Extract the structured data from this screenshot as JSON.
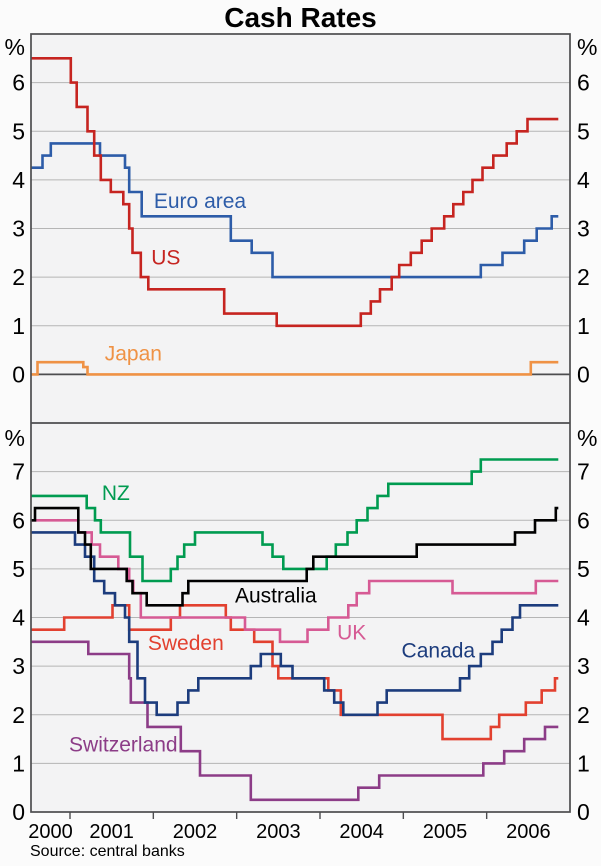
{
  "title": "Cash Rates",
  "source": "Source: central banks",
  "x_axis": {
    "range": [
      2000.532,
      2007.0
    ],
    "data_end": 2006.86,
    "tick_years": [
      2001,
      2002,
      2003,
      2004,
      2005,
      2006
    ],
    "year_labels": [
      {
        "text": "2000",
        "mid": 2000.766
      },
      {
        "text": "2001",
        "mid": 2001.5
      },
      {
        "text": "2002",
        "mid": 2002.5
      },
      {
        "text": "2003",
        "mid": 2003.5
      },
      {
        "text": "2004",
        "mid": 2004.5
      },
      {
        "text": "2005",
        "mid": 2005.5
      },
      {
        "text": "2006",
        "mid": 2006.5
      }
    ]
  },
  "chart_data": [
    {
      "type": "line",
      "panel": "top",
      "unit": "%",
      "ylim": [
        -1,
        7
      ],
      "yticks": [
        0,
        1,
        2,
        3,
        4,
        5,
        6
      ],
      "zero_line": 0,
      "grid": true,
      "series": [
        {
          "name": "Japan",
          "color": "#ef9245",
          "label": {
            "t": 2001.76,
            "v": 0.44
          },
          "points": [
            [
              2000.53,
              0.0
            ],
            [
              2000.61,
              0.25
            ],
            [
              2001.16,
              0.15
            ],
            [
              2001.21,
              0.0
            ],
            [
              2006.53,
              0.25
            ]
          ]
        },
        {
          "name": "Euro area",
          "color": "#2d5ca8",
          "label": {
            "t": 2002.56,
            "v": 3.57
          },
          "points": [
            [
              2000.53,
              4.25
            ],
            [
              2000.67,
              4.5
            ],
            [
              2000.77,
              4.75
            ],
            [
              2001.36,
              4.5
            ],
            [
              2001.66,
              4.25
            ],
            [
              2001.71,
              3.75
            ],
            [
              2001.86,
              3.25
            ],
            [
              2002.93,
              2.75
            ],
            [
              2003.18,
              2.5
            ],
            [
              2003.43,
              2.0
            ],
            [
              2005.93,
              2.25
            ],
            [
              2006.19,
              2.5
            ],
            [
              2006.45,
              2.75
            ],
            [
              2006.6,
              3.0
            ],
            [
              2006.78,
              3.25
            ]
          ]
        },
        {
          "name": "US",
          "color": "#c62420",
          "label": {
            "t": 2002.15,
            "v": 2.41
          },
          "points": [
            [
              2000.53,
              6.5
            ],
            [
              2001.01,
              6.0
            ],
            [
              2001.08,
              5.5
            ],
            [
              2001.21,
              5.0
            ],
            [
              2001.29,
              4.5
            ],
            [
              2001.37,
              4.0
            ],
            [
              2001.49,
              3.75
            ],
            [
              2001.64,
              3.5
            ],
            [
              2001.71,
              3.0
            ],
            [
              2001.75,
              2.5
            ],
            [
              2001.85,
              2.0
            ],
            [
              2001.94,
              1.75
            ],
            [
              2002.85,
              1.25
            ],
            [
              2003.48,
              1.0
            ],
            [
              2004.49,
              1.25
            ],
            [
              2004.61,
              1.5
            ],
            [
              2004.72,
              1.75
            ],
            [
              2004.86,
              2.0
            ],
            [
              2004.95,
              2.25
            ],
            [
              2005.09,
              2.5
            ],
            [
              2005.22,
              2.75
            ],
            [
              2005.34,
              3.0
            ],
            [
              2005.49,
              3.25
            ],
            [
              2005.6,
              3.5
            ],
            [
              2005.72,
              3.75
            ],
            [
              2005.83,
              4.0
            ],
            [
              2005.95,
              4.25
            ],
            [
              2006.08,
              4.5
            ],
            [
              2006.24,
              4.75
            ],
            [
              2006.36,
              5.0
            ],
            [
              2006.49,
              5.25
            ]
          ]
        }
      ]
    },
    {
      "type": "line",
      "panel": "bottom",
      "unit": "%",
      "ylim": [
        0,
        8
      ],
      "yticks": [
        0,
        1,
        2,
        3,
        4,
        5,
        6,
        7
      ],
      "grid": true,
      "series": [
        {
          "name": "Sweden",
          "color": "#e2402f",
          "label": {
            "t": 2002.39,
            "v": 3.48
          },
          "points": [
            [
              2000.53,
              3.75
            ],
            [
              2000.93,
              4.0
            ],
            [
              2001.51,
              4.25
            ],
            [
              2001.71,
              3.75
            ],
            [
              2002.21,
              4.0
            ],
            [
              2002.32,
              4.25
            ],
            [
              2002.87,
              4.0
            ],
            [
              2002.93,
              3.75
            ],
            [
              2003.21,
              3.5
            ],
            [
              2003.43,
              3.0
            ],
            [
              2003.5,
              2.75
            ],
            [
              2004.1,
              2.5
            ],
            [
              2004.25,
              2.0
            ],
            [
              2005.47,
              1.5
            ],
            [
              2006.05,
              1.75
            ],
            [
              2006.15,
              2.0
            ],
            [
              2006.47,
              2.25
            ],
            [
              2006.66,
              2.5
            ],
            [
              2006.82,
              2.75
            ]
          ]
        },
        {
          "name": "Switzerland",
          "color": "#8c3c87",
          "label": {
            "t": 2001.64,
            "v": 1.4
          },
          "points": [
            [
              2000.53,
              3.5
            ],
            [
              2001.22,
              3.25
            ],
            [
              2001.71,
              2.75
            ],
            [
              2001.73,
              2.25
            ],
            [
              2001.93,
              1.75
            ],
            [
              2002.33,
              1.25
            ],
            [
              2002.56,
              0.75
            ],
            [
              2003.17,
              0.25
            ],
            [
              2004.46,
              0.5
            ],
            [
              2004.71,
              0.75
            ],
            [
              2005.96,
              1.0
            ],
            [
              2006.21,
              1.25
            ],
            [
              2006.45,
              1.5
            ],
            [
              2006.7,
              1.75
            ]
          ]
        },
        {
          "name": "Canada",
          "color": "#1c3c7d",
          "label": {
            "t": 2005.42,
            "v": 3.33
          },
          "points": [
            [
              2000.53,
              5.75
            ],
            [
              2001.06,
              5.5
            ],
            [
              2001.18,
              5.25
            ],
            [
              2001.29,
              4.75
            ],
            [
              2001.41,
              4.5
            ],
            [
              2001.54,
              4.25
            ],
            [
              2001.66,
              4.0
            ],
            [
              2001.71,
              3.5
            ],
            [
              2001.81,
              2.75
            ],
            [
              2001.9,
              2.25
            ],
            [
              2002.04,
              2.0
            ],
            [
              2002.29,
              2.25
            ],
            [
              2002.42,
              2.5
            ],
            [
              2002.54,
              2.75
            ],
            [
              2003.17,
              3.0
            ],
            [
              2003.29,
              3.25
            ],
            [
              2003.53,
              3.0
            ],
            [
              2003.67,
              2.75
            ],
            [
              2004.05,
              2.5
            ],
            [
              2004.17,
              2.25
            ],
            [
              2004.28,
              2.0
            ],
            [
              2004.69,
              2.25
            ],
            [
              2004.8,
              2.5
            ],
            [
              2005.68,
              2.75
            ],
            [
              2005.79,
              3.0
            ],
            [
              2005.93,
              3.25
            ],
            [
              2006.07,
              3.5
            ],
            [
              2006.18,
              3.75
            ],
            [
              2006.31,
              4.0
            ],
            [
              2006.4,
              4.25
            ]
          ]
        },
        {
          "name": "UK",
          "color": "#d65a94",
          "label": {
            "t": 2004.38,
            "v": 3.7
          },
          "points": [
            [
              2000.53,
              6.0
            ],
            [
              2001.1,
              5.75
            ],
            [
              2001.26,
              5.5
            ],
            [
              2001.36,
              5.25
            ],
            [
              2001.58,
              5.0
            ],
            [
              2001.71,
              4.75
            ],
            [
              2001.76,
              4.5
            ],
            [
              2001.85,
              4.0
            ],
            [
              2003.1,
              3.75
            ],
            [
              2003.52,
              3.5
            ],
            [
              2003.85,
              3.75
            ],
            [
              2004.1,
              4.0
            ],
            [
              2004.34,
              4.25
            ],
            [
              2004.44,
              4.5
            ],
            [
              2004.59,
              4.75
            ],
            [
              2005.59,
              4.5
            ],
            [
              2006.59,
              4.75
            ]
          ]
        },
        {
          "name": "NZ",
          "color": "#009b50",
          "label": {
            "t": 2001.55,
            "v": 6.57
          },
          "points": [
            [
              2000.53,
              6.5
            ],
            [
              2001.2,
              6.25
            ],
            [
              2001.3,
              6.0
            ],
            [
              2001.37,
              5.75
            ],
            [
              2001.72,
              5.25
            ],
            [
              2001.87,
              4.75
            ],
            [
              2002.21,
              5.0
            ],
            [
              2002.29,
              5.25
            ],
            [
              2002.37,
              5.5
            ],
            [
              2002.5,
              5.75
            ],
            [
              2003.31,
              5.5
            ],
            [
              2003.43,
              5.25
            ],
            [
              2003.56,
              5.0
            ],
            [
              2004.08,
              5.25
            ],
            [
              2004.19,
              5.5
            ],
            [
              2004.33,
              5.75
            ],
            [
              2004.44,
              6.0
            ],
            [
              2004.57,
              6.25
            ],
            [
              2004.69,
              6.5
            ],
            [
              2004.82,
              6.75
            ],
            [
              2005.82,
              7.0
            ],
            [
              2005.93,
              7.25
            ]
          ]
        },
        {
          "name": "Australia",
          "color": "#000000",
          "label": {
            "t": 2003.47,
            "v": 4.46
          },
          "points": [
            [
              2000.53,
              6.0
            ],
            [
              2000.58,
              6.25
            ],
            [
              2001.1,
              5.75
            ],
            [
              2001.18,
              5.5
            ],
            [
              2001.25,
              5.0
            ],
            [
              2001.68,
              4.75
            ],
            [
              2001.75,
              4.5
            ],
            [
              2001.92,
              4.25
            ],
            [
              2002.35,
              4.5
            ],
            [
              2002.42,
              4.75
            ],
            [
              2003.84,
              5.0
            ],
            [
              2003.92,
              5.25
            ],
            [
              2005.16,
              5.5
            ],
            [
              2006.34,
              5.75
            ],
            [
              2006.58,
              6.0
            ],
            [
              2006.83,
              6.25
            ]
          ]
        }
      ]
    }
  ],
  "style": {
    "frame_color": "#4d4d4f",
    "grid_color": "#b5b5b5",
    "plot_bg": "#f3f3f4",
    "text_color": "#000000"
  }
}
